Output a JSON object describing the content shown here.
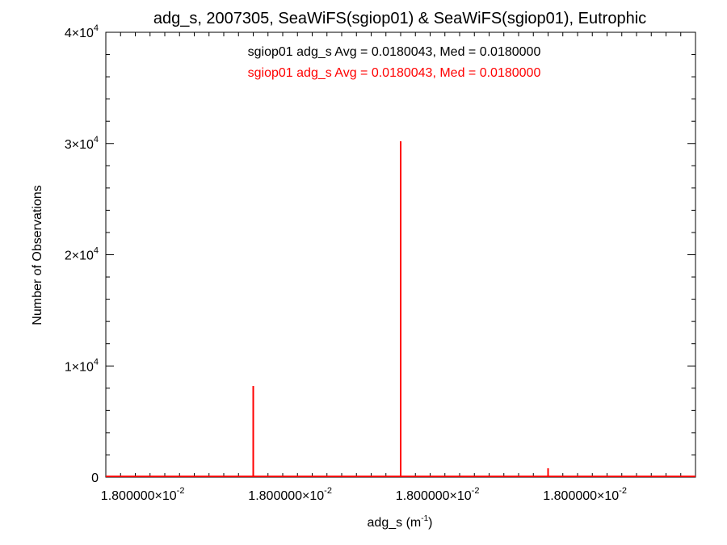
{
  "chart_data": {
    "type": "bar",
    "title": "adg_s, 2007305, SeaWiFS(sgiop01) & SeaWiFS(sgiop01), Eutrophic",
    "xlabel": {
      "base": "adg_s (m",
      "exp": "-1",
      "close": ")"
    },
    "ylabel": "Number of Observations",
    "ylim": [
      0,
      40000
    ],
    "y_ticks": [
      {
        "value": 0,
        "mantissa": "0",
        "exp": ""
      },
      {
        "value": 10000,
        "mantissa": "1×10",
        "exp": "4"
      },
      {
        "value": 20000,
        "mantissa": "2×10",
        "exp": "4"
      },
      {
        "value": 30000,
        "mantissa": "3×10",
        "exp": "4"
      },
      {
        "value": 40000,
        "mantissa": "4×10",
        "exp": "4"
      }
    ],
    "xlim": [
      0,
      4
    ],
    "x_ticks": [
      {
        "value": 0.25,
        "mantissa": "1.800000×10",
        "exp": "-2"
      },
      {
        "value": 1.25,
        "mantissa": "1.800000×10",
        "exp": "-2"
      },
      {
        "value": 2.25,
        "mantissa": "1.800000×10",
        "exp": "-2"
      },
      {
        "value": 3.25,
        "mantissa": "1.800000×10",
        "exp": "-2"
      }
    ],
    "legend": [
      {
        "text": "sgiop01 adg_s Avg = 0.0180043, Med = 0.0180000",
        "color": "#000000"
      },
      {
        "text": "sgiop01 adg_s Avg = 0.0180043, Med = 0.0180000",
        "color": "#ff0000"
      }
    ],
    "series": [
      {
        "color": "#ff0000",
        "x": [
          1.0,
          2.0,
          3.0
        ],
        "values": [
          8200,
          30200,
          800
        ]
      }
    ]
  }
}
